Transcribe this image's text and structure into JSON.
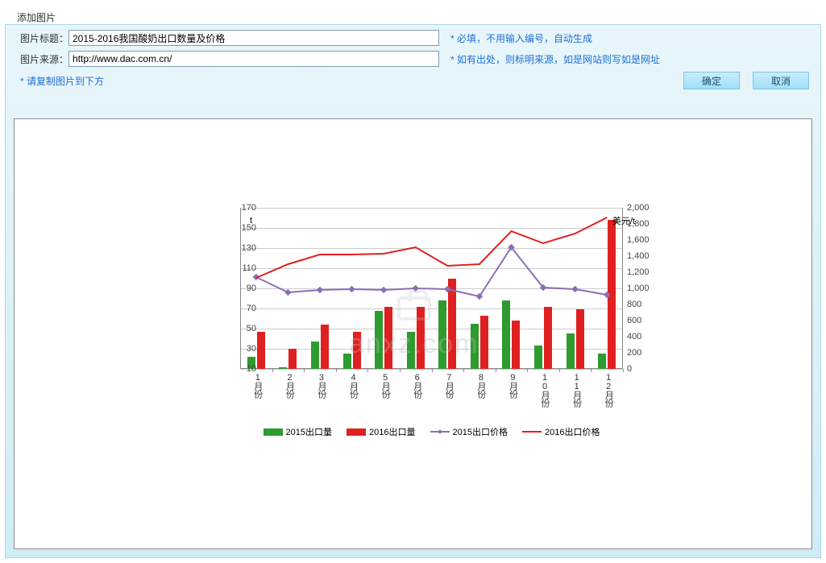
{
  "panel_title": "添加图片",
  "form": {
    "title_label": "图片标题：",
    "title_value": "2015-2016我国酸奶出口数量及价格",
    "title_hint": "必填，不用输入编号，自动生成",
    "source_label": "图片来源：",
    "source_value": "http://www.dac.com.cn/",
    "source_hint": "如有出处，则标明来源，如是网站则写如是网址",
    "copy_hint": "请复制图片到下方",
    "ok": "确定",
    "cancel": "取消"
  },
  "chart": {
    "type": "bar+line-dual-axis",
    "categories": [
      "1月份",
      "2月份",
      "3月份",
      "4月份",
      "5月份",
      "6月份",
      "7月份",
      "8月份",
      "9月份",
      "10月份",
      "11月份",
      "12月份"
    ],
    "left_axis": {
      "title": "t",
      "min": 10,
      "max": 170,
      "ticks": [
        10,
        30,
        50,
        70,
        90,
        110,
        130,
        150,
        170
      ],
      "grid_color": "#cccccc",
      "label_fontsize": 11
    },
    "right_axis": {
      "title": "美元/t",
      "min": 0,
      "max": 2000,
      "ticks": [
        0,
        200,
        400,
        600,
        800,
        1000,
        1200,
        1400,
        1600,
        1800,
        2000
      ],
      "label_fontsize": 11
    },
    "bars": {
      "width": 10,
      "series": [
        {
          "name": "2015出口量",
          "color": "#2e9b2e",
          "values": [
            22,
            12,
            37,
            25,
            68,
            47,
            78,
            55,
            78,
            33,
            45,
            25
          ]
        },
        {
          "name": "2016出口量",
          "color": "#e02020",
          "values": [
            47,
            30,
            54,
            47,
            72,
            72,
            100,
            63,
            58,
            72,
            69,
            158
          ]
        }
      ]
    },
    "lines": {
      "series": [
        {
          "name": "2015出口价格",
          "color": "#8a6fb5",
          "width": 2,
          "marker": "diamond",
          "values": [
            1140,
            950,
            980,
            990,
            980,
            1000,
            990,
            900,
            1510,
            1010,
            990,
            920
          ]
        },
        {
          "name": "2016出口价格",
          "color": "#e02020",
          "width": 2,
          "marker": "none",
          "values": [
            1130,
            1300,
            1420,
            1420,
            1430,
            1510,
            1280,
            1300,
            1710,
            1560,
            1680,
            1880
          ]
        }
      ]
    },
    "legend": {
      "items": [
        "2015出口量",
        "2016出口量",
        "2015出口价格",
        "2016出口价格"
      ],
      "fontsize": 11
    },
    "background_color": "#ffffff",
    "border_color": "#8c8c8c",
    "watermark": "anxz.com"
  }
}
